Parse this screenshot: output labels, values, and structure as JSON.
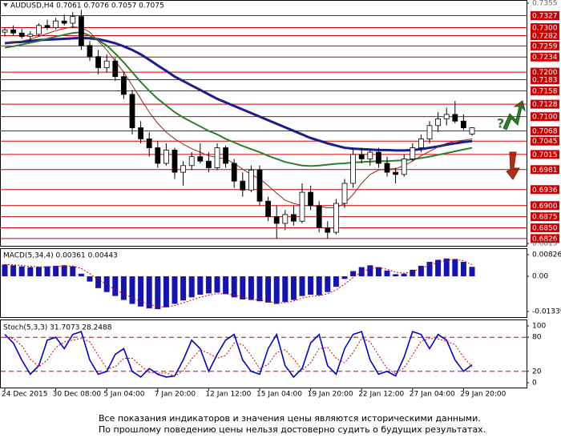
{
  "chart_data": [
    {
      "type": "candlestick",
      "title": "AUDUSD,H4  0.7061 0.7076 0.7057 0.7075",
      "annotation": "?",
      "ylim": [
        0.6815,
        0.7355
      ],
      "yticks": [
        0.7355,
        0.6815
      ],
      "levels": [
        0.7327,
        {
          "value": 0.73,
          "label": "0.7300"
        },
        0.7282,
        0.7259,
        0.7234,
        {
          "value": 0.72,
          "label": "0.7200"
        },
        0.7183,
        0.7158,
        0.7128,
        {
          "value": 0.71,
          "label": "0.7100"
        },
        0.7068,
        0.7045,
        0.7015,
        0.6981,
        0.6936,
        {
          "value": 0.69,
          "label": "0.6900"
        },
        0.6875,
        {
          "value": 0.685,
          "label": "0.6850"
        },
        0.6826
      ],
      "level_color": "#cc0000",
      "up_color": "#ffffff",
      "down_color": "#000000",
      "open": [
        0.729,
        0.7295,
        0.7288,
        0.728,
        0.7285,
        0.7305,
        0.73,
        0.7315,
        0.731,
        0.7325,
        0.726,
        0.7235,
        0.721,
        0.7225,
        0.719,
        0.715,
        0.7075,
        0.705,
        0.703,
        0.6995,
        0.7025,
        0.6975,
        0.699,
        0.701,
        0.7,
        0.6985,
        0.703,
        0.6995,
        0.6955,
        0.6935,
        0.698,
        0.691,
        0.6875,
        0.686,
        0.688,
        0.6865,
        0.693,
        0.69,
        0.685,
        0.684,
        0.6905,
        0.695,
        0.7015,
        0.7005,
        0.702,
        0.6995,
        0.6975,
        0.697,
        0.7005,
        0.703,
        0.705,
        0.708,
        0.7095,
        0.7105,
        0.709,
        0.7061
      ],
      "high": [
        0.73,
        0.7305,
        0.7298,
        0.7292,
        0.731,
        0.7318,
        0.7322,
        0.733,
        0.7335,
        0.734,
        0.727,
        0.725,
        0.724,
        0.7232,
        0.72,
        0.716,
        0.709,
        0.7065,
        0.7045,
        0.704,
        0.703,
        0.7,
        0.702,
        0.704,
        0.702,
        0.704,
        0.7035,
        0.7005,
        0.6975,
        0.699,
        0.699,
        0.692,
        0.69,
        0.689,
        0.69,
        0.695,
        0.6945,
        0.691,
        0.6865,
        0.6915,
        0.696,
        0.703,
        0.703,
        0.7025,
        0.703,
        0.701,
        0.6985,
        0.7015,
        0.704,
        0.706,
        0.709,
        0.711,
        0.712,
        0.7135,
        0.7105,
        0.7076
      ],
      "low": [
        0.728,
        0.7282,
        0.7275,
        0.727,
        0.728,
        0.7295,
        0.7296,
        0.7305,
        0.73,
        0.725,
        0.7225,
        0.7195,
        0.72,
        0.718,
        0.714,
        0.706,
        0.704,
        0.701,
        0.6985,
        0.699,
        0.696,
        0.6945,
        0.698,
        0.6995,
        0.6975,
        0.698,
        0.6985,
        0.694,
        0.692,
        0.693,
        0.69,
        0.6865,
        0.6826,
        0.6845,
        0.6855,
        0.686,
        0.689,
        0.684,
        0.6826,
        0.6835,
        0.6895,
        0.694,
        0.6995,
        0.699,
        0.6985,
        0.6965,
        0.695,
        0.6965,
        0.7,
        0.702,
        0.704,
        0.7065,
        0.708,
        0.7085,
        0.707,
        0.7057
      ],
      "close": [
        0.7295,
        0.7288,
        0.728,
        0.7285,
        0.7305,
        0.73,
        0.7315,
        0.731,
        0.7325,
        0.726,
        0.7235,
        0.721,
        0.7225,
        0.719,
        0.715,
        0.7075,
        0.705,
        0.703,
        0.6995,
        0.7025,
        0.6975,
        0.699,
        0.701,
        0.7,
        0.6985,
        0.703,
        0.6995,
        0.6955,
        0.6935,
        0.698,
        0.691,
        0.6875,
        0.686,
        0.688,
        0.6865,
        0.693,
        0.69,
        0.685,
        0.684,
        0.6905,
        0.695,
        0.7015,
        0.7005,
        0.702,
        0.6995,
        0.6975,
        0.697,
        0.7005,
        0.703,
        0.705,
        0.708,
        0.7095,
        0.7105,
        0.709,
        0.7075,
        0.7075
      ],
      "lines": [
        {
          "color": "#1c1c8e",
          "width": 3,
          "values": [
            0.7265,
            0.7267,
            0.7268,
            0.727,
            0.7272,
            0.7273,
            0.7274,
            0.7275,
            0.7276,
            0.7277,
            0.7276,
            0.7274,
            0.727,
            0.7265,
            0.7258,
            0.725,
            0.724,
            0.7228,
            0.7215,
            0.7203,
            0.719,
            0.718,
            0.717,
            0.716,
            0.715,
            0.714,
            0.7132,
            0.7124,
            0.7116,
            0.7108,
            0.71,
            0.7092,
            0.7084,
            0.7076,
            0.7068,
            0.706,
            0.7052,
            0.7046,
            0.704,
            0.7035,
            0.703,
            0.7028,
            0.7027,
            0.7026,
            0.7025,
            0.7025,
            0.7024,
            0.7024,
            0.7025,
            0.7027,
            0.703,
            0.7033,
            0.7037,
            0.704,
            0.7043,
            0.7045
          ]
        },
        {
          "color": "#2e7d2e",
          "width": 2,
          "values": [
            0.7255,
            0.7258,
            0.7262,
            0.7266,
            0.727,
            0.7275,
            0.728,
            0.7284,
            0.7288,
            0.729,
            0.7282,
            0.7272,
            0.726,
            0.7242,
            0.7222,
            0.72,
            0.7178,
            0.7158,
            0.714,
            0.7125,
            0.711,
            0.7098,
            0.7088,
            0.7078,
            0.7068,
            0.706,
            0.705,
            0.7042,
            0.7034,
            0.7027,
            0.702,
            0.7012,
            0.7005,
            0.6998,
            0.6994,
            0.699,
            0.6989,
            0.699,
            0.6992,
            0.6994,
            0.6995,
            0.6997,
            0.6998,
            0.6999,
            0.7,
            0.7,
            0.7001,
            0.7002,
            0.7004,
            0.7007,
            0.701,
            0.7014,
            0.7018,
            0.7022,
            0.7026,
            0.703
          ]
        },
        {
          "color": "#8b2c1a",
          "width": 1,
          "values": [
            0.7265,
            0.7268,
            0.727,
            0.7274,
            0.728,
            0.7287,
            0.7293,
            0.7298,
            0.7302,
            0.73,
            0.729,
            0.727,
            0.725,
            0.7225,
            0.72,
            0.717,
            0.714,
            0.711,
            0.7085,
            0.7065,
            0.705,
            0.7038,
            0.7028,
            0.702,
            0.7012,
            0.7008,
            0.7005,
            0.6995,
            0.6982,
            0.697,
            0.696,
            0.6945,
            0.6928,
            0.6912,
            0.6905,
            0.69,
            0.69,
            0.6898,
            0.6895,
            0.6895,
            0.6905,
            0.6925,
            0.695,
            0.697,
            0.698,
            0.6982,
            0.6983,
            0.699,
            0.7,
            0.7012,
            0.7022,
            0.7032,
            0.704,
            0.7045,
            0.7047,
            0.705
          ]
        }
      ]
    },
    {
      "type": "macd",
      "title": "MACD(5,34,4)  0.00361 0.00443",
      "ylim": [
        -0.01339,
        0.00826
      ],
      "yticks": [
        0.00826,
        {
          "value": 0,
          "label": "0.00"
        },
        -0.01339
      ],
      "color": "#1414b4",
      "signal_color": "#cc0000",
      "values": [
        0.0045,
        0.0042,
        0.0038,
        0.0035,
        0.0036,
        0.0038,
        0.004,
        0.0042,
        0.0038,
        0.001,
        -0.002,
        -0.0045,
        -0.006,
        -0.0075,
        -0.009,
        -0.0105,
        -0.0115,
        -0.0122,
        -0.0125,
        -0.0118,
        -0.0105,
        -0.0092,
        -0.008,
        -0.007,
        -0.0065,
        -0.0062,
        -0.0068,
        -0.008,
        -0.0088,
        -0.009,
        -0.0095,
        -0.01,
        -0.0105,
        -0.0098,
        -0.009,
        -0.0075,
        -0.007,
        -0.0072,
        -0.006,
        -0.004,
        -0.001,
        0.002,
        0.0035,
        0.0042,
        0.0035,
        0.0022,
        0.0008,
        0.001,
        0.0025,
        0.004,
        0.0055,
        0.0063,
        0.0068,
        0.0066,
        0.0055,
        0.00361
      ],
      "signal": [
        0.0045,
        0.0044,
        0.0041,
        0.0038,
        0.0036,
        0.0036,
        0.0037,
        0.0039,
        0.0039,
        0.003,
        0.001,
        -0.0012,
        -0.0032,
        -0.005,
        -0.0066,
        -0.0082,
        -0.0096,
        -0.0107,
        -0.0115,
        -0.0117,
        -0.0111,
        -0.0101,
        -0.009,
        -0.008,
        -0.0072,
        -0.0066,
        -0.0066,
        -0.0072,
        -0.008,
        -0.0086,
        -0.0091,
        -0.0096,
        -0.0101,
        -0.01,
        -0.0094,
        -0.0083,
        -0.0076,
        -0.0074,
        -0.0066,
        -0.0052,
        -0.003,
        -0.0004,
        0.0016,
        0.003,
        0.0033,
        0.0027,
        0.0016,
        0.0012,
        0.0018,
        0.003,
        0.0043,
        0.0053,
        0.0061,
        0.0064,
        0.0059,
        0.00443
      ]
    },
    {
      "type": "stochastic",
      "title": "Stoch(5,3,3)  31.7073 28.2488",
      "ylim": [
        0,
        100
      ],
      "yticks": [
        100,
        80,
        20,
        0
      ],
      "color": "#0000cc",
      "signal_color": "#cc0000",
      "categories": [
        "24 Dec 2015",
        null,
        null,
        null,
        null,
        null,
        "30 Dec 08:00",
        null,
        null,
        null,
        null,
        null,
        "5 Jan 04:00",
        null,
        null,
        null,
        null,
        null,
        "7 Jan 20:00",
        null,
        null,
        null,
        null,
        null,
        "12 Jan 12:00",
        null,
        null,
        null,
        null,
        null,
        "15 Jan 04:00",
        null,
        null,
        null,
        null,
        null,
        "19 Jan 20:00",
        null,
        null,
        null,
        null,
        null,
        "22 Jan 12:00",
        null,
        null,
        null,
        null,
        null,
        "27 Jan 04:00",
        null,
        null,
        null,
        null,
        null,
        "29 Jan 20:00",
        null
      ],
      "values": [
        85,
        70,
        40,
        15,
        30,
        75,
        80,
        60,
        85,
        90,
        40,
        15,
        20,
        50,
        60,
        20,
        10,
        25,
        15,
        10,
        12,
        40,
        75,
        60,
        20,
        50,
        75,
        85,
        40,
        20,
        15,
        60,
        85,
        30,
        10,
        25,
        70,
        85,
        30,
        15,
        60,
        85,
        90,
        40,
        15,
        20,
        12,
        45,
        90,
        85,
        60,
        85,
        75,
        40,
        20,
        31.7073
      ],
      "signal": [
        80,
        78,
        65,
        42,
        28,
        40,
        62,
        72,
        75,
        78,
        72,
        48,
        25,
        28,
        43,
        43,
        30,
        18,
        17,
        17,
        12,
        21,
        42,
        58,
        52,
        43,
        48,
        70,
        67,
        48,
        25,
        32,
        53,
        58,
        42,
        22,
        35,
        60,
        62,
        43,
        35,
        53,
        78,
        72,
        48,
        25,
        16,
        26,
        49,
        73,
        78,
        77,
        73,
        67,
        45,
        28.2488
      ]
    }
  ],
  "footer": [
    "Все показания индикаторов и значения цены являются историческими данными.",
    "По прошлому поведению цены нельзя достоверно судить о будущих результатах."
  ]
}
